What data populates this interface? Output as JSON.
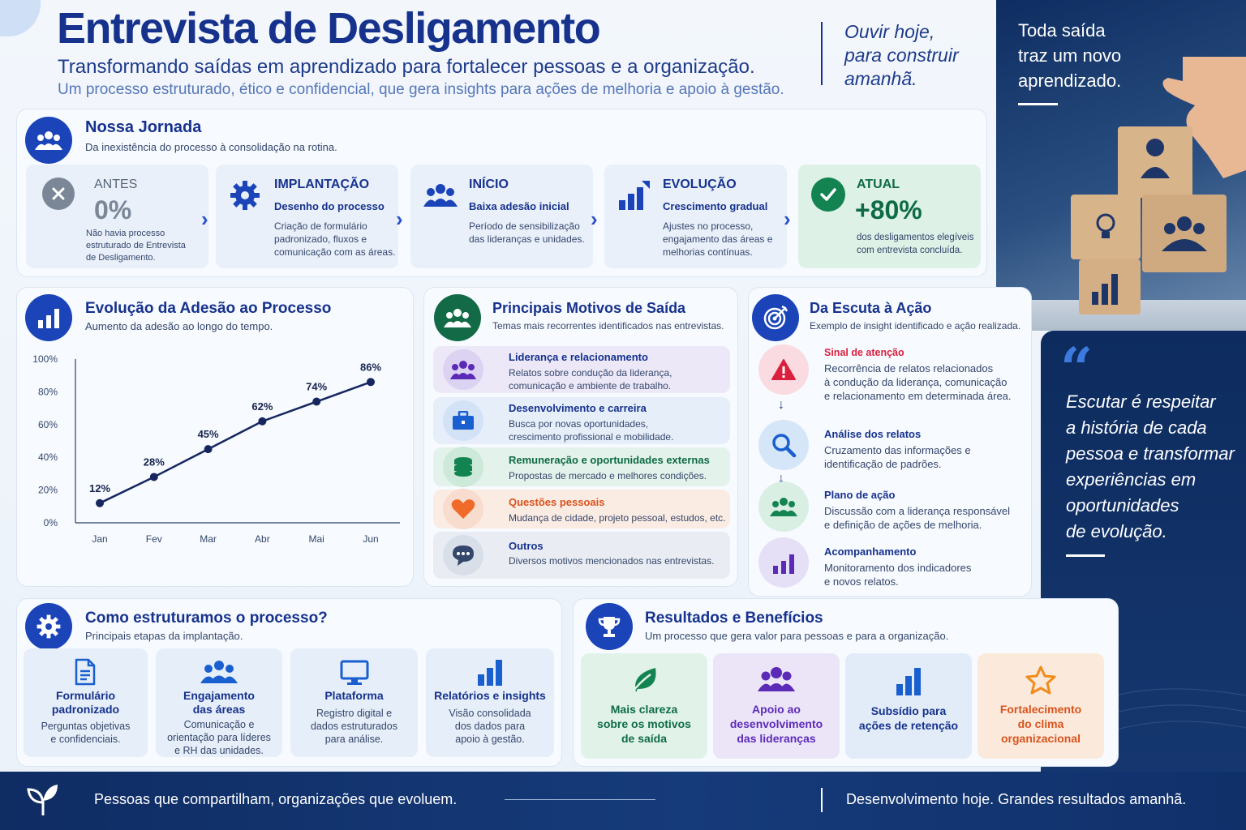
{
  "header": {
    "title": "Entrevista de Desligamento",
    "subtitle": "Transformando saídas em aprendizado para fortalecer pessoas e a organização.",
    "description": "Um processo estruturado, ético e confidencial, que gera insights para ações de melhoria e apoio à gestão.",
    "tagline": [
      "Ouvir hoje,",
      "para construir",
      "amanhã."
    ]
  },
  "side": {
    "top_text": [
      "Toda saída",
      "traz um novo",
      "aprendizado."
    ],
    "quote": [
      "Escutar é respeitar",
      "a história de cada",
      "pessoa e transformar",
      "experiências em",
      "oportunidades",
      "de evolução."
    ]
  },
  "journey": {
    "title": "Nossa Jornada",
    "subtitle": "Da inexistência do processo à consolidação na rotina.",
    "steps": [
      {
        "head": "ANTES",
        "value": "0%",
        "text": "Não havia processo estruturado de Entrevista de Desligamento.",
        "icon": "x-icon"
      },
      {
        "head": "IMPLANTAÇÃO",
        "bold": "Desenho do processo",
        "text": "Criação de formulário padronizado, fluxos e comunicação com as áreas.",
        "icon": "gear-icon"
      },
      {
        "head": "INÍCIO",
        "bold": "Baixa adesão inicial",
        "text": "Período de sensibilização das lideranças e unidades.",
        "icon": "people-icon"
      },
      {
        "head": "EVOLUÇÃO",
        "bold": "Crescimento gradual",
        "text": "Ajustes no processo, engajamento das áreas e melhorias contínuas.",
        "icon": "bar-chart-icon"
      },
      {
        "head": "ATUAL",
        "value": "+80%",
        "text": "dos desligamentos elegíveis com entrevista concluída.",
        "icon": "check-icon"
      }
    ]
  },
  "adhesion": {
    "title": "Evolução da Adesão ao Processo",
    "subtitle": "Aumento da adesão ao longo do tempo."
  },
  "chart_data": {
    "type": "line",
    "categories": [
      "Jan",
      "Fev",
      "Mar",
      "Abr",
      "Mai",
      "Jun"
    ],
    "values": [
      12,
      28,
      45,
      62,
      74,
      86
    ],
    "data_labels": [
      "12%",
      "28%",
      "45%",
      "62%",
      "74%",
      "86%"
    ],
    "y_ticks": [
      "0%",
      "20%",
      "40%",
      "60%",
      "80%",
      "100%"
    ],
    "ylim": [
      0,
      100
    ],
    "grid": false,
    "color": "#16275f"
  },
  "motives": {
    "title": "Principais Motivos de Saída",
    "subtitle": "Temas mais recorrentes identificados nas entrevistas.",
    "items": [
      {
        "title": "Liderança e relacionamento",
        "text": [
          "Relatos sobre condução da liderança,",
          "comunicação e ambiente de trabalho."
        ],
        "color": "#16328c",
        "icon": "people-icon"
      },
      {
        "title": "Desenvolvimento e carreira",
        "text": [
          "Busca por novas oportunidades,",
          "crescimento profissional e mobilidade."
        ],
        "color": "#16328c",
        "icon": "briefcase-icon"
      },
      {
        "title": "Remuneração e oportunidades externas",
        "text": [
          "Propostas de mercado e melhores condições."
        ],
        "color": "#0e6b45",
        "icon": "coins-icon"
      },
      {
        "title": "Questões pessoais",
        "text": [
          "Mudança de cidade, projeto pessoal, estudos, etc."
        ],
        "color": "#d9531e",
        "icon": "heart-icon"
      },
      {
        "title": "Outros",
        "text": [
          "Diversos motivos mencionados nas entrevistas."
        ],
        "color": "#34466b",
        "icon": "chat-icon"
      }
    ]
  },
  "action": {
    "title": "Da Escuta à Ação",
    "subtitle": "Exemplo de insight identificado e ação realizada.",
    "items": [
      {
        "title": "Sinal de atenção",
        "text": [
          "Recorrência de relatos relacionados",
          "à condução da liderança, comunicação",
          "e relacionamento em determinada área."
        ],
        "icon": "alert-icon"
      },
      {
        "title": "Análise dos relatos",
        "text": [
          "Cruzamento das informações e",
          "identificação de padrões."
        ],
        "icon": "search-icon"
      },
      {
        "title": "Plano de ação",
        "text": [
          "Discussão com a liderança responsável",
          "e definição de ações de melhoria."
        ],
        "icon": "people-icon"
      },
      {
        "title": "Acompanhamento",
        "text": [
          "Monitoramento dos indicadores",
          "e novos relatos."
        ],
        "icon": "bar-chart-icon"
      }
    ]
  },
  "structure": {
    "title": "Como estruturamos o processo?",
    "subtitle": "Principais etapas da implantação.",
    "items": [
      {
        "title": [
          "Formulário",
          "padronizado"
        ],
        "text": [
          "Perguntas objetivas",
          "e confidenciais."
        ],
        "icon": "document-icon"
      },
      {
        "title": [
          "Engajamento",
          "das áreas"
        ],
        "text": [
          "Comunicação e",
          "orientação para líderes",
          "e RH das unidades."
        ],
        "icon": "people-icon"
      },
      {
        "title": [
          "Plataforma"
        ],
        "text": [
          "Registro digital e",
          "dados estruturados",
          "para análise."
        ],
        "icon": "monitor-icon"
      },
      {
        "title": [
          "Relatórios e insights"
        ],
        "text": [
          "Visão consolidada",
          "dos dados para",
          "apoio à gestão."
        ],
        "icon": "bar-chart-icon"
      }
    ]
  },
  "results": {
    "title": "Resultados e Benefícios",
    "subtitle": "Um processo que gera valor para pessoas e para a organização.",
    "items": [
      {
        "title": [
          "Mais clareza",
          "sobre os motivos",
          "de saída"
        ],
        "icon": "leaf-icon"
      },
      {
        "title": [
          "Apoio ao",
          "desenvolvimento",
          "das lideranças"
        ],
        "icon": "people-icon"
      },
      {
        "title": [
          "Subsídio para",
          "ações de retenção"
        ],
        "icon": "bar-chart-icon"
      },
      {
        "title": [
          "Fortalecimento",
          "do clima",
          "organizacional"
        ],
        "icon": "star-icon"
      }
    ]
  },
  "footer": {
    "left": "Pessoas que compartilham, organizações que evoluem.",
    "right": "Desenvolvimento hoje. Grandes resultados amanhã."
  }
}
